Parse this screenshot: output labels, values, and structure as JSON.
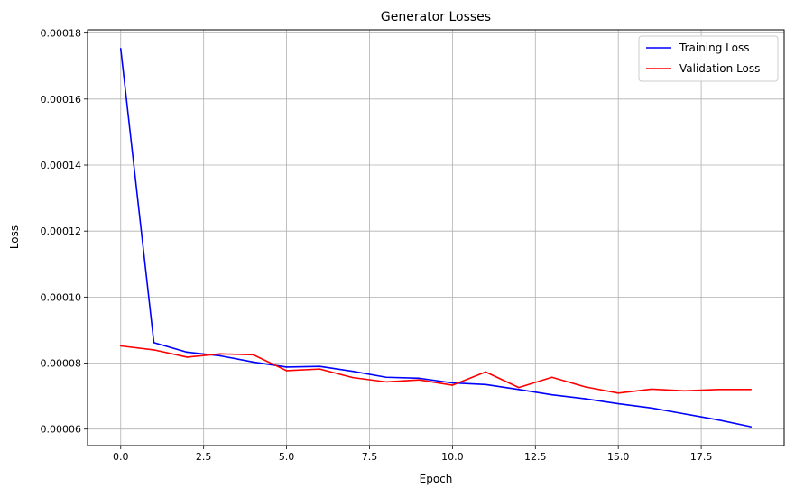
{
  "chart_data": {
    "type": "line",
    "title": "Generator Losses",
    "xlabel": "Epoch",
    "ylabel": "Loss",
    "xlim": [
      -1,
      20
    ],
    "ylim": [
      5.5e-05,
      0.000181
    ],
    "x_ticks": [
      0,
      2.5,
      5,
      7.5,
      10,
      12.5,
      15,
      17.5
    ],
    "x_tick_labels": [
      "0.0",
      "2.5",
      "5.0",
      "7.5",
      "10.0",
      "12.5",
      "15.0",
      "17.5"
    ],
    "y_ticks": [
      6e-05,
      8e-05,
      0.0001,
      0.00012,
      0.00014,
      0.00016,
      0.00018
    ],
    "y_tick_labels": [
      "0.00006",
      "0.00008",
      "0.00010",
      "0.00012",
      "0.00014",
      "0.00016",
      "0.00018"
    ],
    "grid": true,
    "legend_position": "top-right",
    "x": [
      0,
      1,
      2,
      3,
      4,
      5,
      6,
      7,
      8,
      9,
      10,
      11,
      12,
      13,
      14,
      15,
      16,
      17,
      18,
      19
    ],
    "series": [
      {
        "name": "Training Loss",
        "color": "#0000ff",
        "values": [
          0.0001753,
          8.62e-05,
          8.33e-05,
          8.22e-05,
          8.03e-05,
          7.88e-05,
          7.9e-05,
          7.75e-05,
          7.57e-05,
          7.54e-05,
          7.4e-05,
          7.35e-05,
          7.2e-05,
          7.04e-05,
          6.92e-05,
          6.77e-05,
          6.64e-05,
          6.46e-05,
          6.28e-05,
          6.07e-05
        ]
      },
      {
        "name": "Validation Loss",
        "color": "#ff0000",
        "values": [
          8.52e-05,
          8.4e-05,
          8.18e-05,
          8.28e-05,
          8.25e-05,
          7.77e-05,
          7.82e-05,
          7.56e-05,
          7.43e-05,
          7.49e-05,
          7.33e-05,
          7.73e-05,
          7.26e-05,
          7.57e-05,
          7.28e-05,
          7.09e-05,
          7.21e-05,
          7.16e-05,
          7.2e-05,
          7.2e-05
        ]
      }
    ]
  }
}
